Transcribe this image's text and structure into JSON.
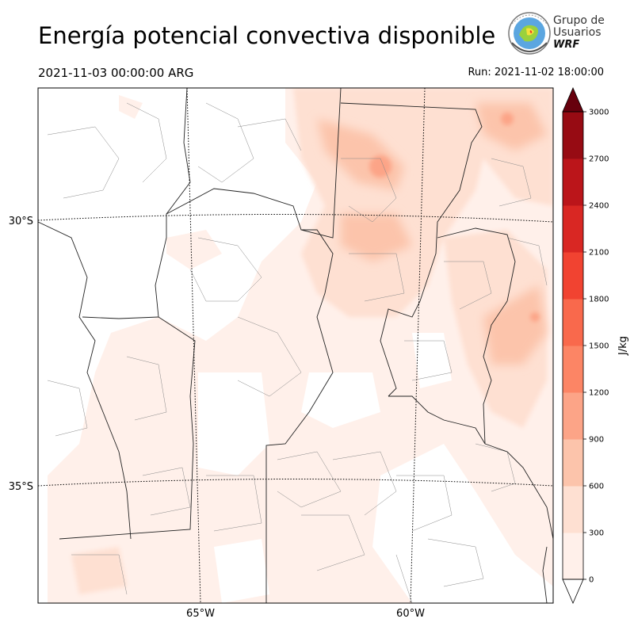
{
  "header": {
    "title": "Energía potencial convectiva disponible",
    "valid_time": "2021-11-03 00:00:00 ARG",
    "run_time": "Run: 2021-11-02 18:00:00"
  },
  "logo": {
    "line1": "Grupo de",
    "line2": "Usuarios",
    "line3": "WRF"
  },
  "map": {
    "lat_labels": [
      "30°S",
      "35°S"
    ],
    "lon_labels": [
      "65°W",
      "60°W"
    ]
  },
  "colorbar": {
    "unit": "J/kg",
    "ticks": [
      "0",
      "300",
      "600",
      "900",
      "1200",
      "1500",
      "1800",
      "2100",
      "2400",
      "2700",
      "3000"
    ],
    "colors": [
      "#fff0ea",
      "#fee0d2",
      "#fcc4ab",
      "#fca487",
      "#fc8565",
      "#f9694c",
      "#f14331",
      "#d92723",
      "#bb151a",
      "#970b13",
      "#67000d"
    ]
  },
  "chart_data": {
    "type": "heatmap",
    "variable": "CAPE",
    "range": [
      0,
      3000
    ],
    "levels": [
      0,
      300,
      600,
      900,
      1200,
      1500,
      1800,
      2100,
      2400,
      2700,
      3000
    ]
  }
}
